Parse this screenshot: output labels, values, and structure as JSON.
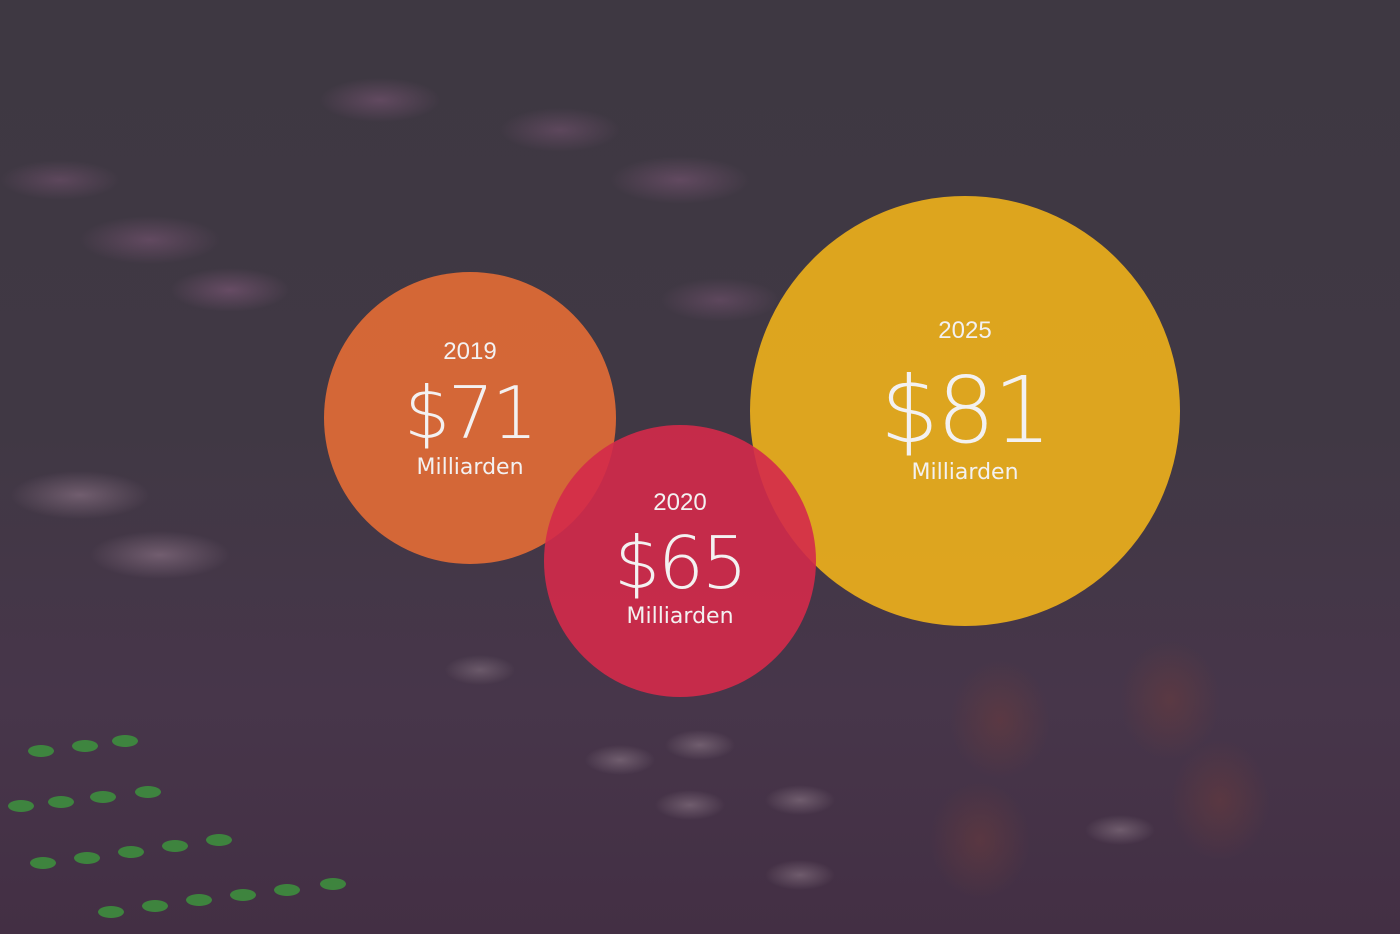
{
  "chart_data": {
    "type": "bubble",
    "unit": "Milliarden",
    "series": [
      {
        "category": "2019",
        "value": 71,
        "value_label": "$71",
        "unit_label": "Milliarden",
        "color": "#e06b36"
      },
      {
        "category": "2020",
        "value": 65,
        "value_label": "$65",
        "unit_label": "Milliarden",
        "color": "#d42a4a"
      },
      {
        "category": "2025",
        "value": 81,
        "value_label": "$81",
        "unit_label": "Milliarden",
        "color": "#eaad1c"
      }
    ]
  },
  "colors": {
    "background": "#3f3843",
    "text": "#f3f1f1"
  }
}
